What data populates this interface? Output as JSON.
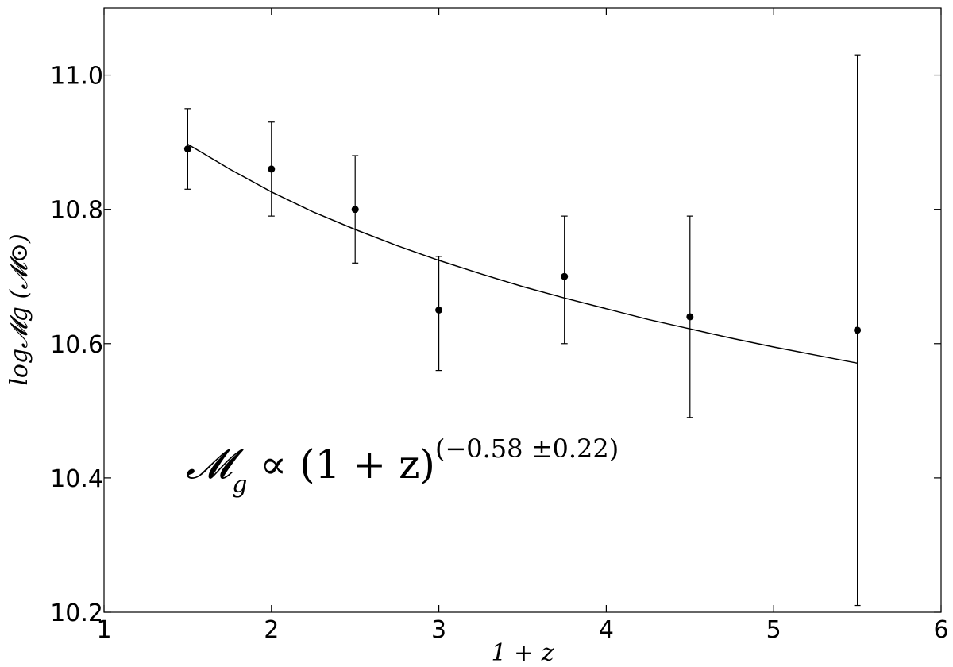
{
  "chart_data": {
    "type": "scatter",
    "xlabel": "1 + z",
    "ylabel": "log𝓜g (𝓜⊙)",
    "xlim": [
      1,
      6
    ],
    "ylim": [
      10.2,
      11.1
    ],
    "x_ticks": [
      "1",
      "2",
      "3",
      "4",
      "5",
      "6"
    ],
    "y_ticks": [
      "10.2",
      "10.4",
      "10.6",
      "10.8",
      "11.0"
    ],
    "grid": false,
    "series": [
      {
        "type": "errorbar",
        "x": [
          1.5,
          2.0,
          2.5,
          3.0,
          3.75,
          4.5,
          5.5
        ],
        "y": [
          10.89,
          10.86,
          10.8,
          10.65,
          10.7,
          10.64,
          10.62
        ],
        "yerr_low": [
          10.83,
          10.79,
          10.72,
          10.56,
          10.6,
          10.49,
          10.21
        ],
        "yerr_high": [
          10.95,
          10.93,
          10.88,
          10.73,
          10.79,
          10.79,
          11.03
        ]
      },
      {
        "type": "line",
        "x": [
          1.5,
          1.75,
          2.0,
          2.25,
          2.5,
          2.75,
          3.0,
          3.25,
          3.5,
          3.75,
          4.0,
          4.25,
          4.5,
          4.75,
          5.0,
          5.25,
          5.5
        ],
        "y": [
          10.897,
          10.86,
          10.826,
          10.796,
          10.77,
          10.746,
          10.724,
          10.704,
          10.685,
          10.668,
          10.652,
          10.636,
          10.622,
          10.608,
          10.595,
          10.583,
          10.571
        ]
      }
    ],
    "annotation": {
      "main": "𝓜",
      "sub": "g",
      "mid": " ∝ (1 + z)",
      "exponent": "(−0.58 ±0.22)"
    }
  }
}
